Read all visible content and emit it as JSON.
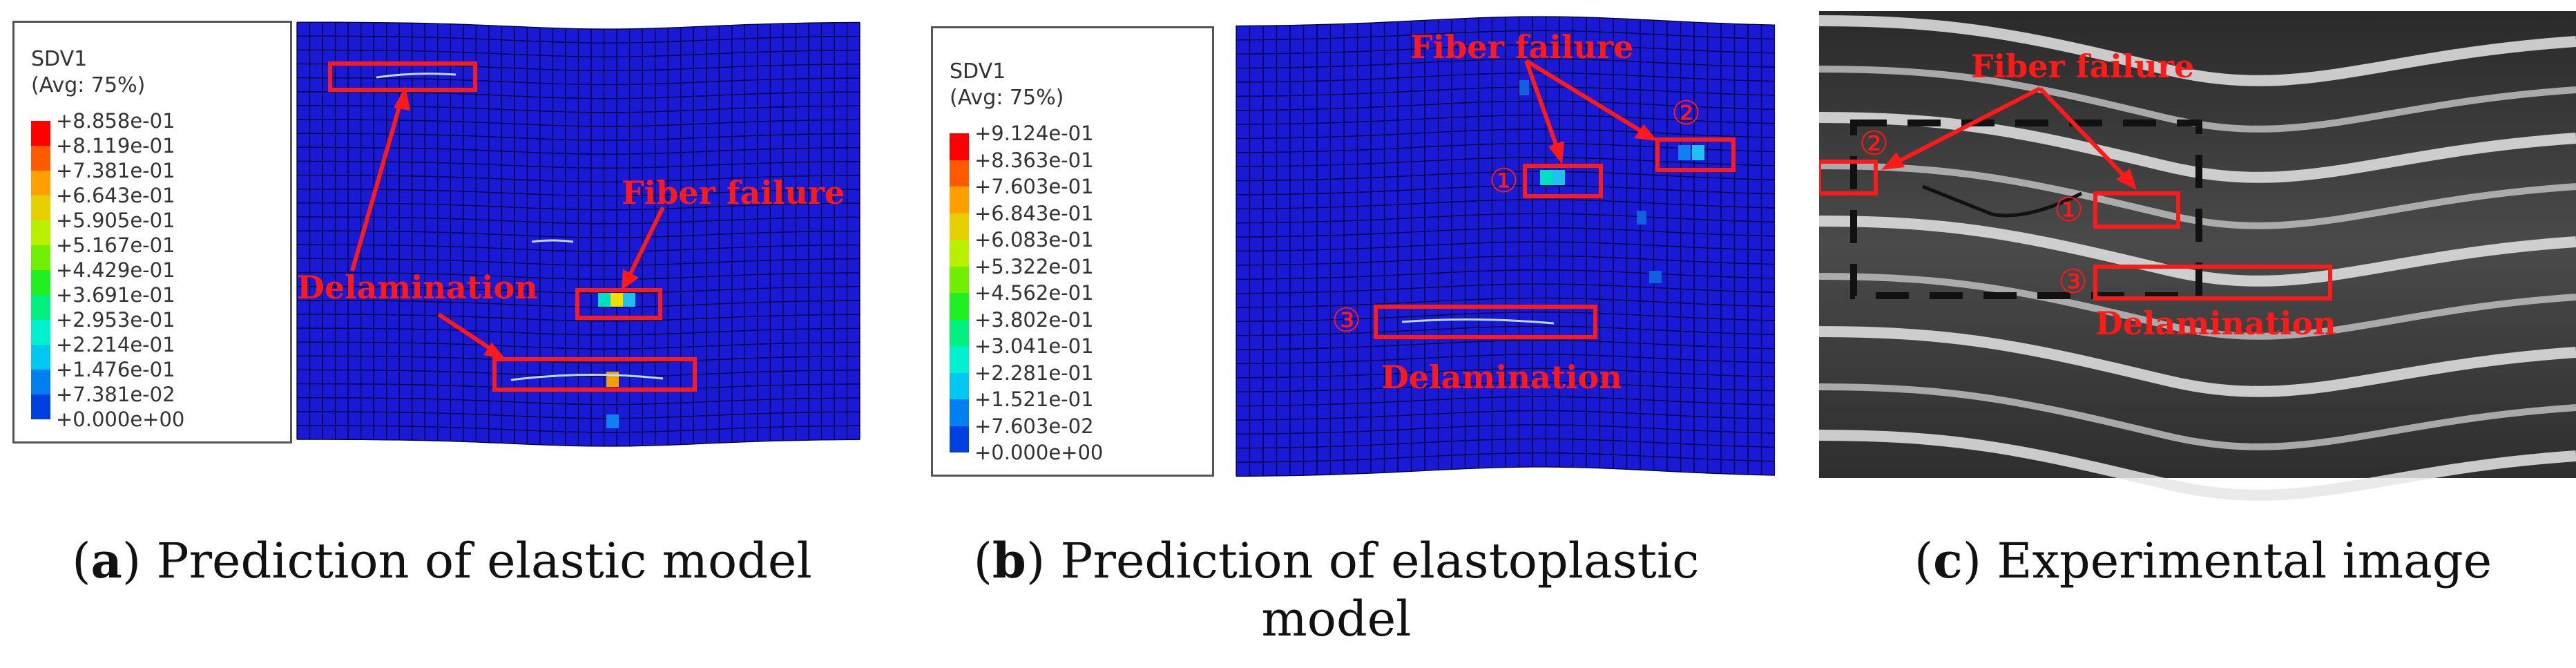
{
  "panels": [
    {
      "id": "a",
      "caption_letter": "a",
      "caption_text": "Prediction of elastic model",
      "legend": {
        "title_line1": "SDV1",
        "title_line2": "(Avg: 75%)",
        "values": [
          "+8.858e-01",
          "+8.119e-01",
          "+7.381e-01",
          "+6.643e-01",
          "+5.905e-01",
          "+5.167e-01",
          "+4.429e-01",
          "+3.691e-01",
          "+2.953e-01",
          "+2.214e-01",
          "+1.476e-01",
          "+7.381e-02",
          "+0.000e+00"
        ]
      },
      "labels": {
        "delamination": "Delamination",
        "fiber_failure": "Fiber failure"
      }
    },
    {
      "id": "b",
      "caption_letter": "b",
      "caption_text": "Prediction of elastoplastic model",
      "legend": {
        "title_line1": "SDV1",
        "title_line2": "(Avg: 75%)",
        "values": [
          "+9.124e-01",
          "+8.363e-01",
          "+7.603e-01",
          "+6.843e-01",
          "+6.083e-01",
          "+5.322e-01",
          "+4.562e-01",
          "+3.802e-01",
          "+3.041e-01",
          "+2.281e-01",
          "+1.521e-01",
          "+7.603e-02",
          "+0.000e+00"
        ]
      },
      "labels": {
        "fiber_failure": "Fiber failure",
        "delamination": "Delamination",
        "marker1": "①",
        "marker2": "②",
        "marker3": "③"
      }
    },
    {
      "id": "c",
      "caption_letter": "c",
      "caption_text": "Experimental image",
      "labels": {
        "fiber_failure": "Fiber failure",
        "delamination": "Delamination",
        "marker1": "①",
        "marker2": "②",
        "marker3": "③"
      }
    }
  ],
  "colors": {
    "mesh_blue": "#1a1ad6",
    "mesh_line": "#000033",
    "annotation_red": "#ff1a1a",
    "legend_scale": [
      "#ff0000",
      "#ff5a00",
      "#ffa000",
      "#e6d000",
      "#b8f000",
      "#70f000",
      "#20f020",
      "#00f080",
      "#00f0d0",
      "#00c8f0",
      "#0080f0",
      "#0040e0",
      "#0000d8"
    ]
  }
}
